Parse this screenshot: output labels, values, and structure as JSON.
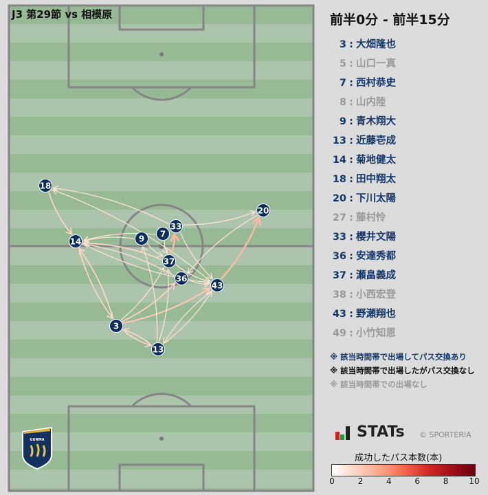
{
  "header": {
    "match_title": "J3 第29節 vs 相模原",
    "period": "前半0分 - 前半15分"
  },
  "colors": {
    "active": "#15386b",
    "inactive_no_pass": "#111111",
    "absent": "#9a9a9a",
    "node": "#0d2d5e"
  },
  "roster": [
    {
      "num": "3",
      "name": "大畑隆也",
      "status": "active"
    },
    {
      "num": "5",
      "name": "山口一真",
      "status": "absent"
    },
    {
      "num": "7",
      "name": "西村恭史",
      "status": "active"
    },
    {
      "num": "8",
      "name": "山内陸",
      "status": "absent"
    },
    {
      "num": "9",
      "name": "青木翔大",
      "status": "active"
    },
    {
      "num": "13",
      "name": "近藤壱成",
      "status": "active"
    },
    {
      "num": "14",
      "name": "菊地健太",
      "status": "active"
    },
    {
      "num": "18",
      "name": "田中翔太",
      "status": "active"
    },
    {
      "num": "20",
      "name": "下川太陽",
      "status": "active"
    },
    {
      "num": "27",
      "name": "藤村怜",
      "status": "absent"
    },
    {
      "num": "33",
      "name": "櫻井文陽",
      "status": "active"
    },
    {
      "num": "36",
      "name": "安達秀都",
      "status": "active"
    },
    {
      "num": "37",
      "name": "瀬畠義成",
      "status": "active"
    },
    {
      "num": "38",
      "name": "小西宏登",
      "status": "absent"
    },
    {
      "num": "43",
      "name": "野瀬翔也",
      "status": "active"
    },
    {
      "num": "49",
      "name": "小竹知恩",
      "status": "absent"
    }
  ],
  "notes": [
    {
      "text": "※ 該当時間帯で出場してパス交換あり",
      "status": "active"
    },
    {
      "text": "※ 該当時間帯で出場したがパス交換なし",
      "status": "inactive_no_pass"
    },
    {
      "text": "※ 該当時間帯での出場なし",
      "status": "absent"
    }
  ],
  "brand": {
    "stats": "STATs",
    "copyright": "© SPORTERIA",
    "logo_text": "GUNMA"
  },
  "scale": {
    "title": "成功したパス本数(本)",
    "min": 0,
    "max": 10,
    "ticks": [
      "0",
      "2",
      "4",
      "6",
      "8",
      "10"
    ]
  },
  "passes": [
    {
      "from": "18",
      "to": "14",
      "count": 2
    },
    {
      "from": "33",
      "to": "18",
      "count": 1
    },
    {
      "from": "43",
      "to": "18",
      "count": 1
    },
    {
      "from": "7",
      "to": "14",
      "count": 1
    },
    {
      "from": "9",
      "to": "14",
      "count": 1
    },
    {
      "from": "37",
      "to": "14",
      "count": 2
    },
    {
      "from": "36",
      "to": "14",
      "count": 1
    },
    {
      "from": "14",
      "to": "3",
      "count": 2
    },
    {
      "from": "3",
      "to": "14",
      "count": 2
    },
    {
      "from": "3",
      "to": "13",
      "count": 2
    },
    {
      "from": "13",
      "to": "3",
      "count": 2
    },
    {
      "from": "3",
      "to": "37",
      "count": 1
    },
    {
      "from": "3",
      "to": "36",
      "count": 2
    },
    {
      "from": "3",
      "to": "43",
      "count": 3
    },
    {
      "from": "13",
      "to": "37",
      "count": 1
    },
    {
      "from": "13",
      "to": "9",
      "count": 1
    },
    {
      "from": "43",
      "to": "13",
      "count": 1
    },
    {
      "from": "37",
      "to": "33",
      "count": 4
    },
    {
      "from": "43",
      "to": "20",
      "count": 4
    },
    {
      "from": "33",
      "to": "20",
      "count": 1
    },
    {
      "from": "20",
      "to": "36",
      "count": 1
    },
    {
      "from": "33",
      "to": "43",
      "count": 1
    },
    {
      "from": "37",
      "to": "43",
      "count": 1
    },
    {
      "from": "14",
      "to": "43",
      "count": 1
    },
    {
      "from": "36",
      "to": "43",
      "count": 1
    },
    {
      "from": "13",
      "to": "43",
      "count": 1
    },
    {
      "from": "9",
      "to": "37",
      "count": 1
    },
    {
      "from": "7",
      "to": "37",
      "count": 1
    }
  ]
}
